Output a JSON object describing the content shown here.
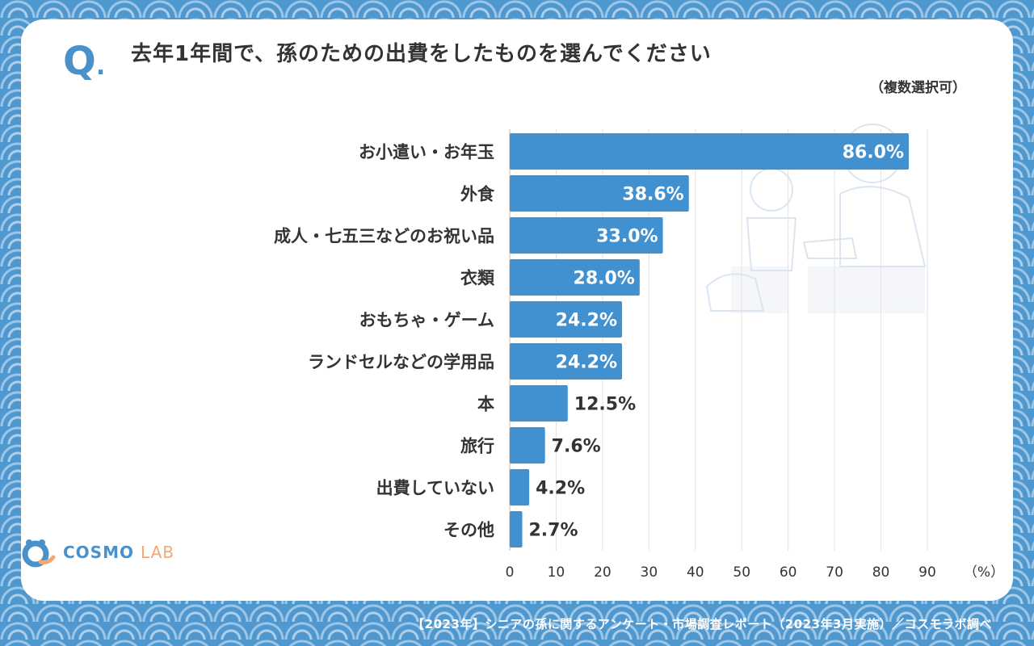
{
  "question": {
    "mark": "Q",
    "dot": ".",
    "title": "去年1年間で、孫のための出費をしたものを選んでください",
    "note": "（複数選択可）"
  },
  "footer": "【2023年】シニアの孫に関するアンケート・市場調査レポート（2023年3月実施）／コスモラボ調べ",
  "logo": {
    "cosmo": "COSMO",
    "lab": "LAB"
  },
  "colors": {
    "bar": "#4191d0",
    "frame": "#4f97cf",
    "text": "#333333"
  },
  "chart_data": {
    "type": "bar",
    "orientation": "horizontal",
    "categories": [
      "お小遣い・お年玉",
      "外食",
      "成人・七五三などのお祝い品",
      "衣類",
      "おもちゃ・ゲーム",
      "ランドセルなどの学用品",
      "本",
      "旅行",
      "出費していない",
      "その他"
    ],
    "values": [
      86.0,
      38.6,
      33.0,
      28.0,
      24.2,
      24.2,
      12.5,
      7.6,
      4.2,
      2.7
    ],
    "value_labels": [
      "86.0%",
      "38.6%",
      "33.0%",
      "28.0%",
      "24.2%",
      "24.2%",
      "12.5%",
      "7.6%",
      "4.2%",
      "2.7%"
    ],
    "xticks": [
      "0",
      "10",
      "20",
      "30",
      "40",
      "50",
      "60",
      "70",
      "80",
      "90"
    ],
    "xunit": "（%）",
    "xlim": [
      0,
      90
    ],
    "grid": true
  }
}
